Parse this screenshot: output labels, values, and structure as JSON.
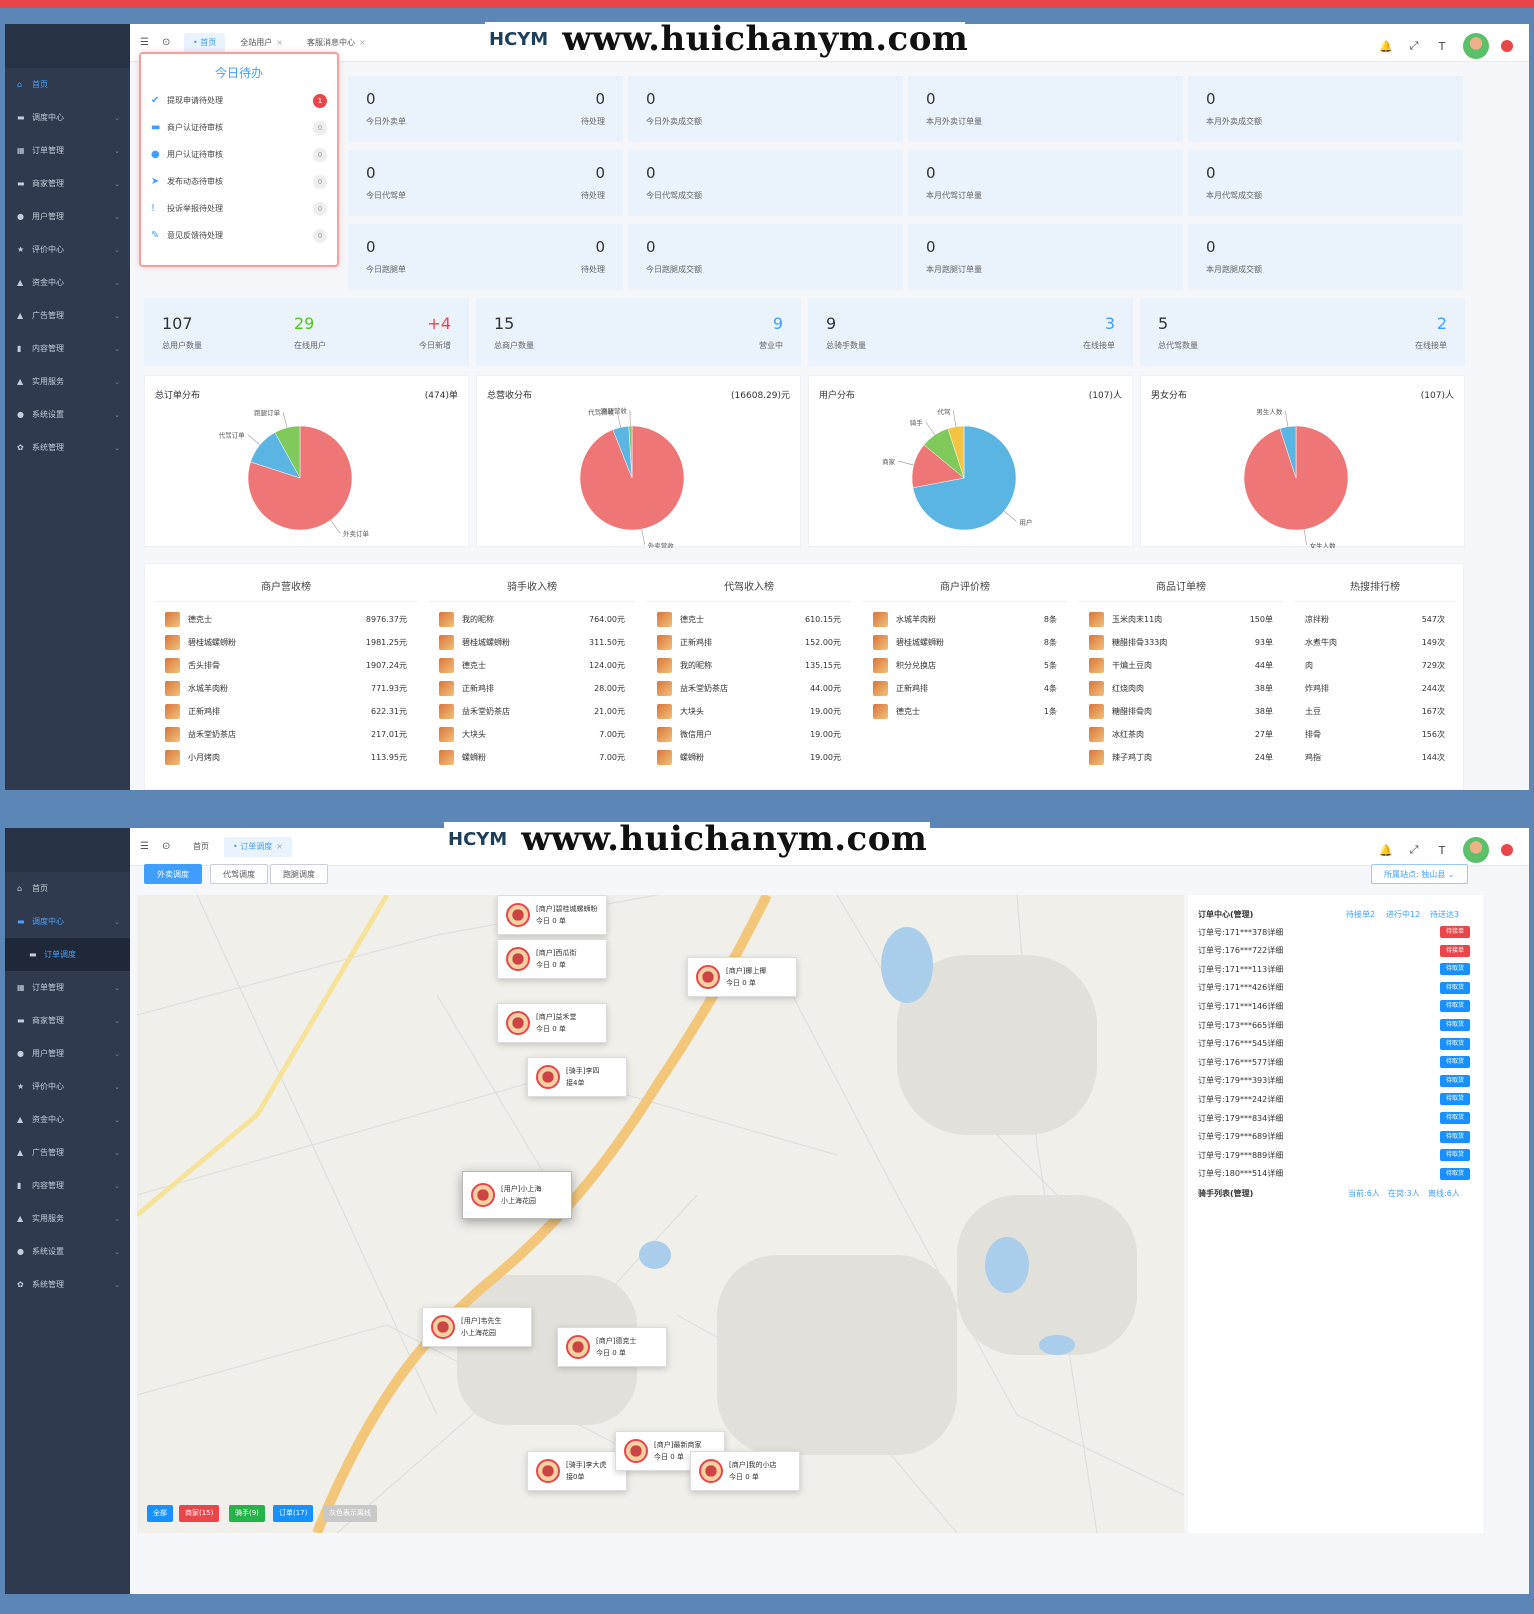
{
  "dashboard": {
    "sidebar": [
      {
        "label": "首页",
        "icon": "home-icon",
        "active": true
      },
      {
        "label": "调度中心",
        "icon": "monitor-icon"
      },
      {
        "label": "订单管理",
        "icon": "grid-icon"
      },
      {
        "label": "商家管理",
        "icon": "monitor-icon"
      },
      {
        "label": "用户管理",
        "icon": "user-icon"
      },
      {
        "label": "评价中心",
        "icon": "star-icon"
      },
      {
        "label": "资金中心",
        "icon": "money-icon"
      },
      {
        "label": "广告管理",
        "icon": "ad-icon"
      },
      {
        "label": "内容管理",
        "icon": "doc-icon"
      },
      {
        "label": "实用服务",
        "icon": "service-icon"
      },
      {
        "label": "系统设置",
        "icon": "settings-icon"
      },
      {
        "label": "系统管理",
        "icon": "gear-icon"
      }
    ],
    "tabs": [
      {
        "label": "首页",
        "active": true
      },
      {
        "label": "全站用户"
      },
      {
        "label": "客服消息中心"
      }
    ],
    "todo": {
      "title": "今日待办",
      "items": [
        {
          "label": "提现申请待处理",
          "count": "1"
        },
        {
          "label": "商户认证待审核",
          "count": "0"
        },
        {
          "label": "用户认证待审核",
          "count": "0"
        },
        {
          "label": "发布动态待审核",
          "count": "0"
        },
        {
          "label": "投诉举报待处理",
          "count": "0"
        },
        {
          "label": "意见反馈待处理",
          "count": "0"
        }
      ]
    },
    "stats": [
      {
        "a_val": "0",
        "a_lbl": "今日外卖单",
        "b_val": "0",
        "b_lbl": "待处理",
        "c_val": "0",
        "c_lbl": "今日外卖成交额",
        "d_val": "0",
        "d_lbl": "本月外卖订单量",
        "e_val": "0",
        "e_lbl": "本月外卖成交额"
      },
      {
        "a_val": "0",
        "a_lbl": "今日代驾单",
        "b_val": "0",
        "b_lbl": "待处理",
        "c_val": "0",
        "c_lbl": "今日代驾成交额",
        "d_val": "0",
        "d_lbl": "本月代驾订单量",
        "e_val": "0",
        "e_lbl": "本月代驾成交额"
      },
      {
        "a_val": "0",
        "a_lbl": "今日跑腿单",
        "b_val": "0",
        "b_lbl": "待处理",
        "c_val": "0",
        "c_lbl": "今日跑腿成交额",
        "d_val": "0",
        "d_lbl": "本月跑腿订单量",
        "e_val": "0",
        "e_lbl": "本月跑腿成交额"
      }
    ],
    "big_stats": [
      {
        "v1": "107",
        "l1": "总用户数量",
        "v2": "29",
        "l2": "在线用户",
        "v3": "+4",
        "l3": "今日新增"
      },
      {
        "v1": "15",
        "l1": "总商户数量",
        "v2": "9",
        "l2": "营业中"
      },
      {
        "v1": "9",
        "l1": "总骑手数量",
        "v2": "3",
        "l2": "在线接单"
      },
      {
        "v1": "5",
        "l1": "总代驾数量",
        "v2": "2",
        "l2": "在线接单"
      }
    ],
    "colors": {
      "accent": "#409eff",
      "green": "#52c41a",
      "red": "#e8464a",
      "pie_red": "#ee7677",
      "pie_blue": "#5ab5e3",
      "pie_green": "#80c95b",
      "pie_yellow": "#f5c342"
    },
    "rankings": [
      {
        "title": "商户营收榜",
        "rows": [
          [
            "德克士",
            "8976.37元"
          ],
          [
            "碧桂城螺蛳粉",
            "1981.25元"
          ],
          [
            "舌头排骨",
            "1907.24元"
          ],
          [
            "水城羊肉粉",
            "771.93元"
          ],
          [
            "正新鸡排",
            "622.31元"
          ],
          [
            "益禾堂奶茶店",
            "217.01元"
          ],
          [
            "小月烤肉",
            "113.95元"
          ]
        ]
      },
      {
        "title": "骑手收入榜",
        "rows": [
          [
            "我的昵称",
            "764.00元"
          ],
          [
            "碧桂城螺蛳粉",
            "311.50元"
          ],
          [
            "德克士",
            "124.00元"
          ],
          [
            "正新鸡排",
            "28.00元"
          ],
          [
            "益禾堂奶茶店",
            "21.00元"
          ],
          [
            "大块头",
            "7.00元"
          ],
          [
            "螺蛳粉",
            "7.00元"
          ]
        ]
      },
      {
        "title": "代驾收入榜",
        "rows": [
          [
            "德克士",
            "610.15元"
          ],
          [
            "正新鸡排",
            "152.00元"
          ],
          [
            "我的昵称",
            "135.15元"
          ],
          [
            "益禾堂奶茶店",
            "44.00元"
          ],
          [
            "大块头",
            "19.00元"
          ],
          [
            "微信用户",
            "19.00元"
          ],
          [
            "螺蛳粉",
            "19.00元"
          ]
        ]
      },
      {
        "title": "商户评价榜",
        "rows": [
          [
            "水城羊肉粉",
            "8条"
          ],
          [
            "碧桂城螺蛳粉",
            "8条"
          ],
          [
            "积分兑换店",
            "5条"
          ],
          [
            "正新鸡排",
            "4条"
          ],
          [
            "德克士",
            "1条"
          ]
        ]
      },
      {
        "title": "商品订单榜",
        "rows": [
          [
            "玉米肉末11肉",
            "150单"
          ],
          [
            "糖醋排骨333肉",
            "93单"
          ],
          [
            "干煸土豆肉",
            "44单"
          ],
          [
            "红烧肉肉",
            "38单"
          ],
          [
            "糖醋排骨肉",
            "38单"
          ],
          [
            "冰红茶肉",
            "27单"
          ],
          [
            "辣子鸡丁肉",
            "24单"
          ]
        ]
      },
      {
        "title": "热搜排行榜",
        "rows": [
          [
            "凉拌粉",
            "547次"
          ],
          [
            "水煮牛肉",
            "149次"
          ],
          [
            "肉",
            "729次"
          ],
          [
            "炸鸡排",
            "244次"
          ],
          [
            "土豆",
            "167次"
          ],
          [
            "排骨",
            "156次"
          ],
          [
            "鸡指",
            "144次"
          ]
        ]
      }
    ]
  },
  "chart_data": [
    {
      "type": "pie",
      "title": "总订单分布",
      "total": "(474)单",
      "labels": [
        "外卖订单",
        "代驾订单",
        "跑腿订单"
      ],
      "values": [
        80,
        12,
        8
      ]
    },
    {
      "type": "pie",
      "title": "总营收分布",
      "total": "(16608.29)元",
      "labels": [
        "外卖营收",
        "代驾营收",
        "跑腿营收"
      ],
      "values": [
        94,
        5,
        1
      ]
    },
    {
      "type": "pie",
      "title": "用户分布",
      "total": "(107)人",
      "labels": [
        "用户",
        "商家",
        "骑手",
        "代驾"
      ],
      "values": [
        72,
        14,
        9,
        5
      ]
    },
    {
      "type": "pie",
      "title": "男女分布",
      "total": "(107)人",
      "labels": [
        "女生人数",
        "男生人数"
      ],
      "values": [
        95,
        5
      ]
    }
  ],
  "dispatch": {
    "sidebar": [
      {
        "label": "首页",
        "icon": "home-icon"
      },
      {
        "label": "调度中心",
        "icon": "monitor-icon",
        "active": true
      },
      {
        "label": "订单调度",
        "icon": "monitor-icon",
        "sub": true
      },
      {
        "label": "订单管理",
        "icon": "grid-icon"
      },
      {
        "label": "商家管理",
        "icon": "monitor-icon"
      },
      {
        "label": "用户管理",
        "icon": "user-icon"
      },
      {
        "label": "评价中心",
        "icon": "star-icon"
      },
      {
        "label": "资金中心",
        "icon": "money-icon"
      },
      {
        "label": "广告管理",
        "icon": "ad-icon"
      },
      {
        "label": "内容管理",
        "icon": "doc-icon"
      },
      {
        "label": "实用服务",
        "icon": "service-icon"
      },
      {
        "label": "系统设置",
        "icon": "settings-icon"
      },
      {
        "label": "系统管理",
        "icon": "gear-icon"
      }
    ],
    "tabs": [
      {
        "label": "首页"
      },
      {
        "label": "订单调度",
        "active": true
      }
    ],
    "buttons": [
      {
        "label": "外卖调度",
        "active": true
      },
      {
        "label": "代驾调度"
      },
      {
        "label": "跑腿调度"
      }
    ],
    "station": "所属站点: 独山县",
    "order_center": {
      "title": "订单中心(管理)",
      "pending": "待接单2",
      "ongoing": "进行中12",
      "delivered": "待送达3"
    },
    "orders": [
      {
        "no": "订单号:171***378详细",
        "status": "待接单",
        "color": "#e8464a"
      },
      {
        "no": "订单号:176***722详细",
        "status": "待接单",
        "color": "#e8464a"
      },
      {
        "no": "订单号:171***113详细",
        "status": "待取货",
        "color": "#1890ff"
      },
      {
        "no": "订单号:171***426详细",
        "status": "待取货",
        "color": "#1890ff"
      },
      {
        "no": "订单号:171***146详细",
        "status": "待取货",
        "color": "#1890ff"
      },
      {
        "no": "订单号:173***665详细",
        "status": "待取货",
        "color": "#1890ff"
      },
      {
        "no": "订单号:176***545详细",
        "status": "待取货",
        "color": "#1890ff"
      },
      {
        "no": "订单号:176***577详细",
        "status": "待取货",
        "color": "#1890ff"
      },
      {
        "no": "订单号:179***393详细",
        "status": "待取货",
        "color": "#1890ff"
      },
      {
        "no": "订单号:179***242详细",
        "status": "待取货",
        "color": "#1890ff"
      },
      {
        "no": "订单号:179***834详细",
        "status": "待取货",
        "color": "#1890ff"
      },
      {
        "no": "订单号:179***689详细",
        "status": "待取货",
        "color": "#1890ff"
      },
      {
        "no": "订单号:179***889详细",
        "status": "待取货",
        "color": "#1890ff"
      },
      {
        "no": "订单号:180***514详细",
        "status": "待取货",
        "color": "#1890ff"
      }
    ],
    "rider_title": "骑手列表(管理)",
    "rider_stats": [
      "当前:6人",
      "在岗:3人",
      "离线:6人"
    ],
    "markers": [
      {
        "l1": "[商户]碧桂城螺蛳粉",
        "l2": "今日 0 单"
      },
      {
        "l1": "[商户]西瓜街",
        "l2": "今日 0 单"
      },
      {
        "l1": "[商户]椰上椰",
        "l2": "今日 0 单"
      },
      {
        "l1": "[商户]益禾堂",
        "l2": "今日 0 单"
      },
      {
        "l1": "[骑手]李四",
        "l2": "接4单"
      },
      {
        "l1": "[用户]小上海",
        "l2": "小上海花园"
      },
      {
        "l1": "[用户]韦先生",
        "l2": "小上海花园"
      },
      {
        "l1": "[商户]德克士",
        "l2": "今日 0 单"
      },
      {
        "l1": "[骑手]李大虎",
        "l2": "接0单"
      },
      {
        "l1": "[商户]最新商家",
        "l2": "今日 0 单"
      },
      {
        "l1": "[商户]我的小店",
        "l2": "今日 0 单"
      }
    ],
    "filters": [
      {
        "label": "全部",
        "color": "#1890ff"
      },
      {
        "label": "商家(15)",
        "color": "#e8464a"
      },
      {
        "label": "骑手(9)",
        "color": "#27b24a"
      },
      {
        "label": "订单(17)",
        "color": "#1890ff"
      },
      {
        "label": "灰色表示离线",
        "color": "#c8c8c8"
      }
    ]
  },
  "watermark": {
    "logo": "HCYM",
    "url": "www.huichanym.com"
  }
}
